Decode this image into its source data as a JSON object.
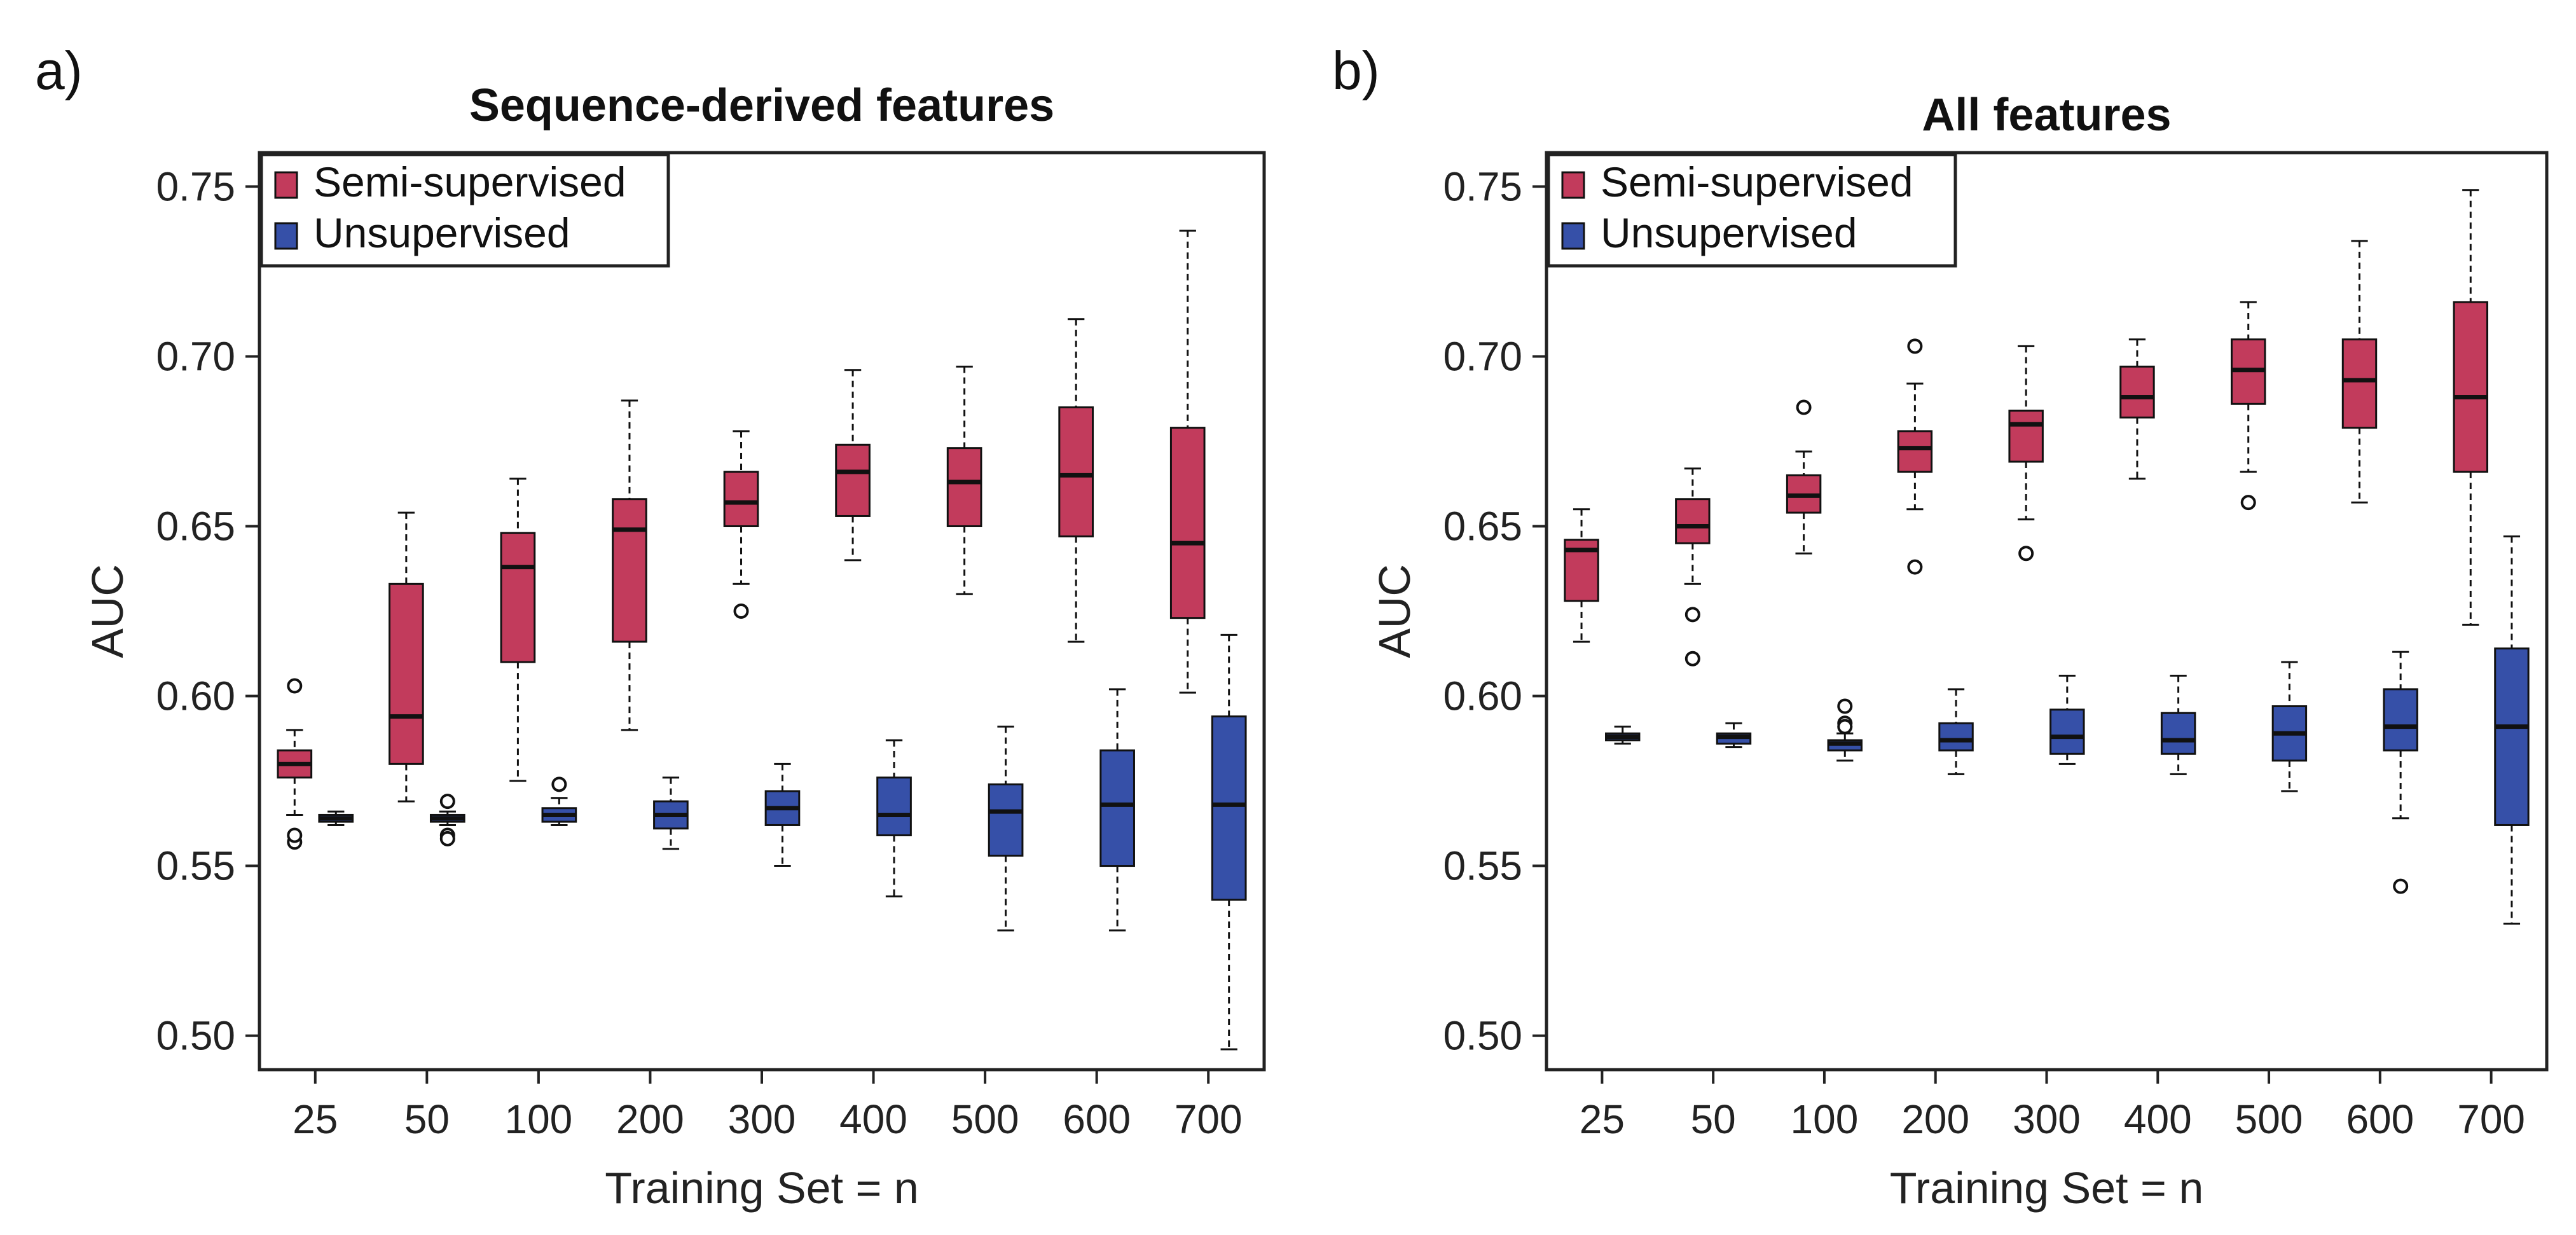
{
  "colors": {
    "semi": "#c23b5c",
    "unsup": "#3650a8",
    "axis": "#222222"
  },
  "chart_data": [
    {
      "type": "boxplot",
      "panel_label": "a)",
      "title": "Sequence-derived features",
      "xlabel": "Training Set = n",
      "ylabel": "AUC",
      "ylim": [
        0.49,
        0.76
      ],
      "yticks": [
        "0.50",
        "0.55",
        "0.60",
        "0.65",
        "0.70",
        "0.75"
      ],
      "categories": [
        "25",
        "50",
        "100",
        "200",
        "300",
        "400",
        "500",
        "600",
        "700"
      ],
      "legend": [
        "Semi-supervised",
        "Unsupervised"
      ],
      "series": [
        {
          "name": "Semi-supervised",
          "boxes": [
            {
              "min": 0.565,
              "q1": 0.576,
              "median": 0.58,
              "q3": 0.584,
              "max": 0.59,
              "outliers": [
                0.603,
                0.557,
                0.559
              ]
            },
            {
              "min": 0.569,
              "q1": 0.58,
              "median": 0.594,
              "q3": 0.633,
              "max": 0.654,
              "outliers": []
            },
            {
              "min": 0.575,
              "q1": 0.61,
              "median": 0.638,
              "q3": 0.648,
              "max": 0.664,
              "outliers": []
            },
            {
              "min": 0.59,
              "q1": 0.616,
              "median": 0.649,
              "q3": 0.658,
              "max": 0.687,
              "outliers": []
            },
            {
              "min": 0.633,
              "q1": 0.65,
              "median": 0.657,
              "q3": 0.666,
              "max": 0.678,
              "outliers": [
                0.625
              ]
            },
            {
              "min": 0.64,
              "q1": 0.653,
              "median": 0.666,
              "q3": 0.674,
              "max": 0.696,
              "outliers": []
            },
            {
              "min": 0.63,
              "q1": 0.65,
              "median": 0.663,
              "q3": 0.673,
              "max": 0.697,
              "outliers": []
            },
            {
              "min": 0.616,
              "q1": 0.647,
              "median": 0.665,
              "q3": 0.685,
              "max": 0.711,
              "outliers": []
            },
            {
              "min": 0.601,
              "q1": 0.623,
              "median": 0.645,
              "q3": 0.679,
              "max": 0.737,
              "outliers": []
            }
          ]
        },
        {
          "name": "Unsupervised",
          "boxes": [
            {
              "min": 0.562,
              "q1": 0.563,
              "median": 0.564,
              "q3": 0.565,
              "max": 0.566,
              "outliers": []
            },
            {
              "min": 0.562,
              "q1": 0.563,
              "median": 0.564,
              "q3": 0.565,
              "max": 0.566,
              "outliers": [
                0.569,
                0.559,
                0.558
              ]
            },
            {
              "min": 0.562,
              "q1": 0.563,
              "median": 0.565,
              "q3": 0.567,
              "max": 0.57,
              "outliers": [
                0.574
              ]
            },
            {
              "min": 0.555,
              "q1": 0.561,
              "median": 0.565,
              "q3": 0.569,
              "max": 0.576,
              "outliers": []
            },
            {
              "min": 0.55,
              "q1": 0.562,
              "median": 0.567,
              "q3": 0.572,
              "max": 0.58,
              "outliers": []
            },
            {
              "min": 0.541,
              "q1": 0.559,
              "median": 0.565,
              "q3": 0.576,
              "max": 0.587,
              "outliers": []
            },
            {
              "min": 0.531,
              "q1": 0.553,
              "median": 0.566,
              "q3": 0.574,
              "max": 0.591,
              "outliers": []
            },
            {
              "min": 0.531,
              "q1": 0.55,
              "median": 0.568,
              "q3": 0.584,
              "max": 0.602,
              "outliers": []
            },
            {
              "min": 0.496,
              "q1": 0.54,
              "median": 0.568,
              "q3": 0.594,
              "max": 0.618,
              "outliers": []
            }
          ]
        }
      ]
    },
    {
      "type": "boxplot",
      "panel_label": "b)",
      "title": "All features",
      "xlabel": "Training Set = n",
      "ylabel": "AUC",
      "ylim": [
        0.49,
        0.76
      ],
      "yticks": [
        "0.50",
        "0.55",
        "0.60",
        "0.65",
        "0.70",
        "0.75"
      ],
      "categories": [
        "25",
        "50",
        "100",
        "200",
        "300",
        "400",
        "500",
        "600",
        "700"
      ],
      "legend": [
        "Semi-supervised",
        "Unsupervised"
      ],
      "series": [
        {
          "name": "Semi-supervised",
          "boxes": [
            {
              "min": 0.616,
              "q1": 0.628,
              "median": 0.643,
              "q3": 0.646,
              "max": 0.655,
              "outliers": []
            },
            {
              "min": 0.633,
              "q1": 0.645,
              "median": 0.65,
              "q3": 0.658,
              "max": 0.667,
              "outliers": [
                0.624,
                0.611
              ]
            },
            {
              "min": 0.642,
              "q1": 0.654,
              "median": 0.659,
              "q3": 0.665,
              "max": 0.672,
              "outliers": [
                0.685
              ]
            },
            {
              "min": 0.655,
              "q1": 0.666,
              "median": 0.673,
              "q3": 0.678,
              "max": 0.692,
              "outliers": [
                0.703,
                0.638
              ]
            },
            {
              "min": 0.652,
              "q1": 0.669,
              "median": 0.68,
              "q3": 0.684,
              "max": 0.703,
              "outliers": [
                0.642
              ]
            },
            {
              "min": 0.664,
              "q1": 0.682,
              "median": 0.688,
              "q3": 0.697,
              "max": 0.705,
              "outliers": []
            },
            {
              "min": 0.666,
              "q1": 0.686,
              "median": 0.696,
              "q3": 0.705,
              "max": 0.716,
              "outliers": [
                0.657
              ]
            },
            {
              "min": 0.657,
              "q1": 0.679,
              "median": 0.693,
              "q3": 0.705,
              "max": 0.734,
              "outliers": []
            },
            {
              "min": 0.621,
              "q1": 0.666,
              "median": 0.688,
              "q3": 0.716,
              "max": 0.749,
              "outliers": []
            }
          ]
        },
        {
          "name": "Unsupervised",
          "boxes": [
            {
              "min": 0.586,
              "q1": 0.587,
              "median": 0.588,
              "q3": 0.589,
              "max": 0.591,
              "outliers": []
            },
            {
              "min": 0.585,
              "q1": 0.586,
              "median": 0.588,
              "q3": 0.589,
              "max": 0.592,
              "outliers": []
            },
            {
              "min": 0.581,
              "q1": 0.584,
              "median": 0.586,
              "q3": 0.587,
              "max": 0.589,
              "outliers": [
                0.597,
                0.592,
                0.591
              ]
            },
            {
              "min": 0.577,
              "q1": 0.584,
              "median": 0.587,
              "q3": 0.592,
              "max": 0.602,
              "outliers": []
            },
            {
              "min": 0.58,
              "q1": 0.583,
              "median": 0.588,
              "q3": 0.596,
              "max": 0.606,
              "outliers": []
            },
            {
              "min": 0.577,
              "q1": 0.583,
              "median": 0.587,
              "q3": 0.595,
              "max": 0.606,
              "outliers": []
            },
            {
              "min": 0.572,
              "q1": 0.581,
              "median": 0.589,
              "q3": 0.597,
              "max": 0.61,
              "outliers": []
            },
            {
              "min": 0.564,
              "q1": 0.584,
              "median": 0.591,
              "q3": 0.602,
              "max": 0.613,
              "outliers": [
                0.544
              ]
            },
            {
              "min": 0.533,
              "q1": 0.562,
              "median": 0.591,
              "q3": 0.614,
              "max": 0.647,
              "outliers": []
            }
          ]
        }
      ]
    }
  ]
}
